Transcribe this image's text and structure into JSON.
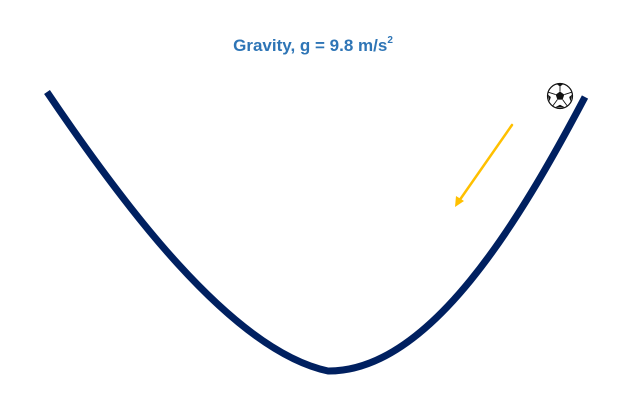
{
  "title": {
    "text": "Gravity, g = 9.8 m/s",
    "superscript": "2"
  },
  "colors": {
    "title": "#2E75B6",
    "track": "#002060",
    "arrow": "#FFC000",
    "ball_light": "#ffffff",
    "ball_dark": "#111111"
  },
  "icons": {
    "ball": "soccer-ball-icon",
    "arrow": "arrow-down-left-icon"
  }
}
